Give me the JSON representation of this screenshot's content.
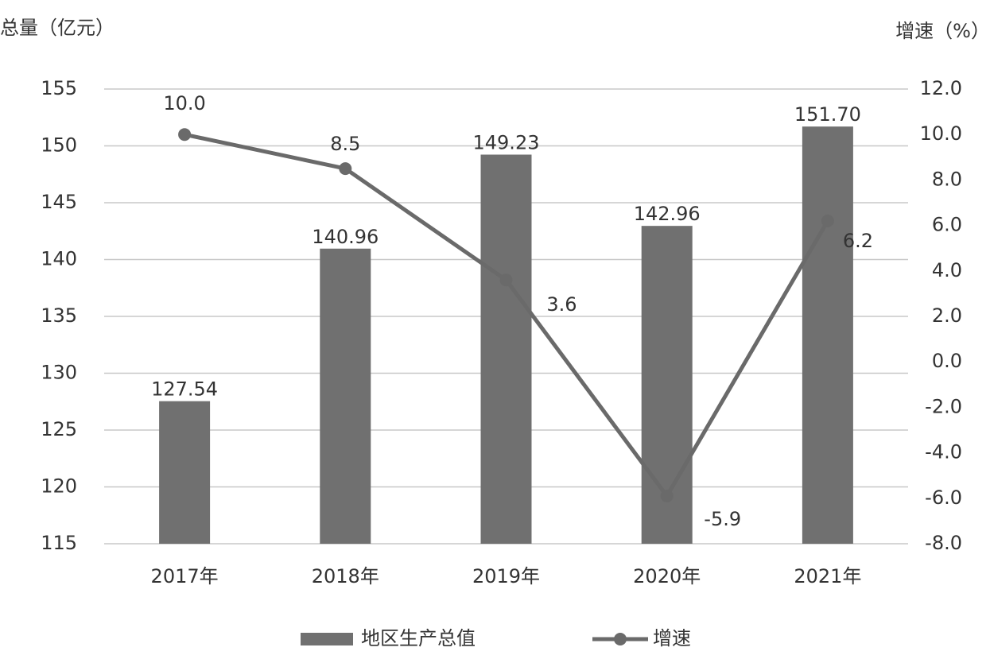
{
  "chart_data": {
    "type": "bar",
    "y_label": "总量（亿元）",
    "y2_label": "增速（%）",
    "categories": [
      "2017年",
      "2018年",
      "2019年",
      "2020年",
      "2021年"
    ],
    "series": [
      {
        "name": "地区生产总值",
        "type": "bar",
        "color": "#707070",
        "values": [
          127.54,
          140.96,
          149.23,
          142.96,
          151.7
        ],
        "value_labels": [
          "127.54",
          "140.96",
          "149.23",
          "142.96",
          "151.70"
        ]
      },
      {
        "name": "增速",
        "type": "line",
        "axis": "y2",
        "color": "#6a6a6a",
        "values": [
          10.0,
          8.5,
          3.6,
          -5.9,
          6.2
        ],
        "value_labels": [
          "10.0",
          "8.5",
          "3.6",
          "-5.9",
          "6.2"
        ]
      }
    ],
    "ylim": [
      115,
      155
    ],
    "yticks": [
      115,
      120,
      125,
      130,
      135,
      140,
      145,
      150,
      155
    ],
    "y2lim": [
      -8,
      12
    ],
    "y2ticks": [
      {
        "value": -8,
        "label": "-8.0"
      },
      {
        "value": -6,
        "label": "-6.0"
      },
      {
        "value": -4,
        "label": "-4.0"
      },
      {
        "value": -2,
        "label": "-2.0"
      },
      {
        "value": 0,
        "label": "0.0"
      },
      {
        "value": 2,
        "label": "2.0"
      },
      {
        "value": 4,
        "label": "4.0"
      },
      {
        "value": 6,
        "label": "6.0"
      },
      {
        "value": 8,
        "label": "8.0"
      },
      {
        "value": 10,
        "label": "10.0"
      },
      {
        "value": 12,
        "label": "12.0"
      }
    ],
    "grid": true,
    "legend": "bottom"
  }
}
